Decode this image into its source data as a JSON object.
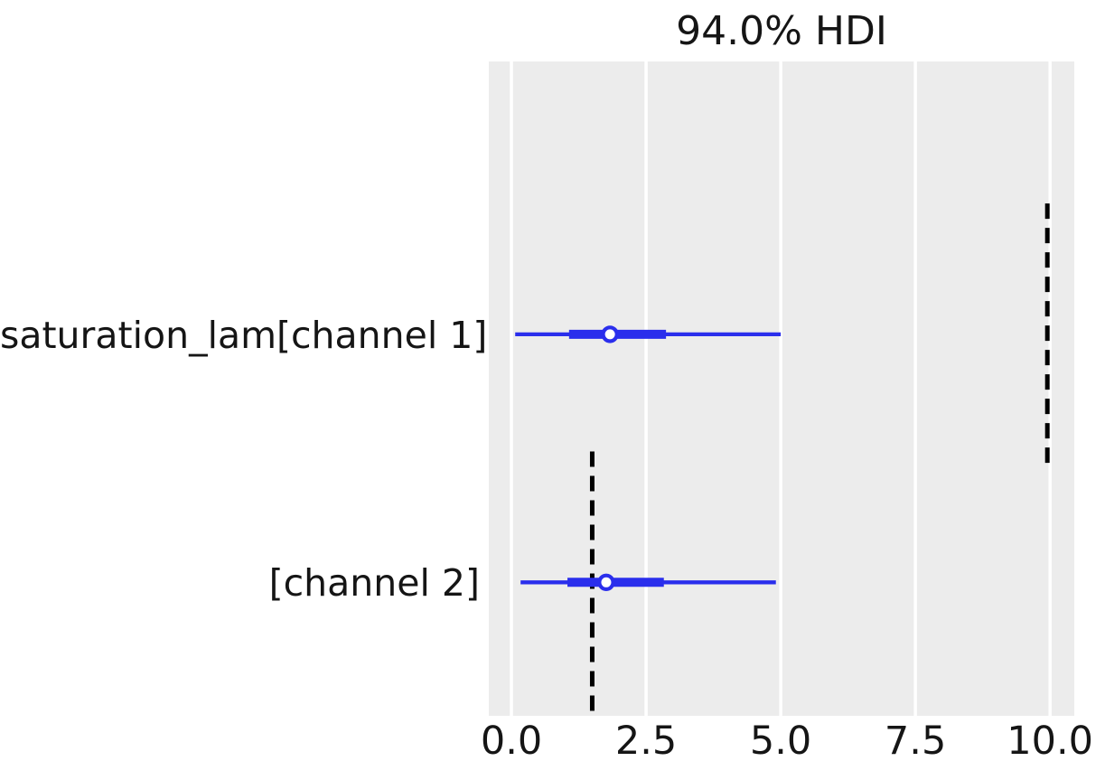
{
  "chart_data": {
    "type": "forest",
    "title": "94.0% HDI",
    "hdi_probability": "94.0%",
    "xlabel": "",
    "xlim": [
      -0.42,
      10.45
    ],
    "xticks": [
      0.0,
      2.5,
      5.0,
      7.5,
      10.0
    ],
    "xtick_labels": [
      "0.0",
      "2.5",
      "5.0",
      "7.5",
      "10.0"
    ],
    "grid": {
      "axis": "x",
      "on": true
    },
    "legend": "none",
    "series": [
      {
        "label": "saturation_lam[channel 1]",
        "hdi_low": 0.07,
        "hdi_high": 5.0,
        "quartile_low": 1.07,
        "quartile_high": 2.87,
        "median": 1.83,
        "reference_value": 9.95,
        "y_frac": 0.417
      },
      {
        "label": "[channel 2]",
        "hdi_low": 0.17,
        "hdi_high": 4.91,
        "quartile_low": 1.04,
        "quartile_high": 2.83,
        "median": 1.76,
        "reference_value": 1.5,
        "y_frac": 0.796
      }
    ],
    "colors": {
      "interval": "#2a2eec",
      "median_fill": "#ffffff",
      "reference_line": "#000000",
      "plot_background": "#ececec",
      "gridline": "#ffffff",
      "text": "#151515"
    },
    "reference_line_style": {
      "dash": "dashed",
      "half_height_frac": 0.2
    }
  }
}
